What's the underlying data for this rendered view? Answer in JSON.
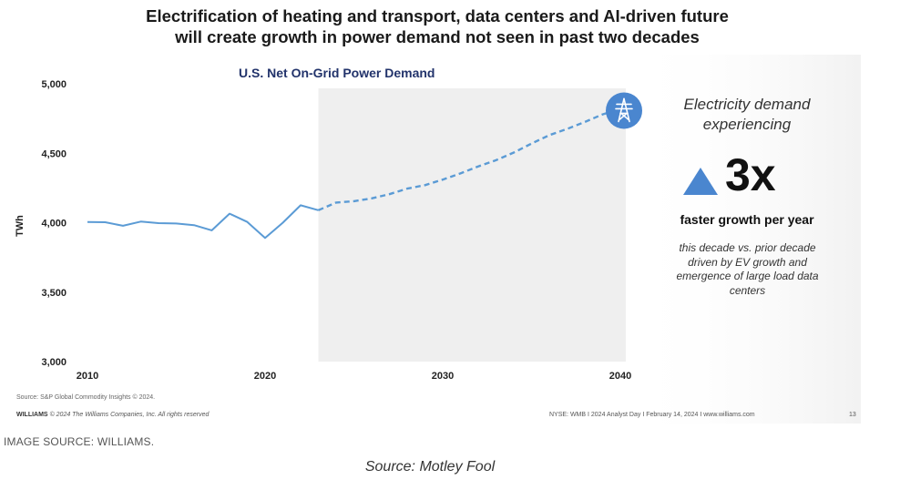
{
  "slide": {
    "title_line1": "Electrification of heating and transport, data centers and AI-driven future",
    "title_line2": "will create growth in power demand not seen in past two decades",
    "source_note": "Source: S&P Global Commodity Insights © 2024.",
    "footer_brand": "WILLIAMS",
    "footer_copyright": "© 2024 The Williams Companies, Inc. All rights reserved",
    "footer_event": "NYSE: WMB  I  2024 Analyst Day  I  February 14, 2024  I  www.williams.com",
    "page_number": "13"
  },
  "callout": {
    "headline": "Electricity demand experiencing",
    "multiplier": "3x",
    "subhead": "faster growth per year",
    "detail": "this decade vs. prior decade driven by EV growth and emergence of large load data centers",
    "icon": "transmission-tower-icon"
  },
  "page": {
    "image_source": "IMAGE SOURCE: WILLIAMS.",
    "caption": "Source: Motley Fool"
  },
  "chart_data": {
    "type": "line",
    "title": "U.S. Net On-Grid Power Demand",
    "ylabel": "TWh",
    "xlabel": "",
    "xlim": [
      2010,
      2040
    ],
    "ylim": [
      3000,
      5000
    ],
    "x_ticks": [
      2010,
      2020,
      2030,
      2040
    ],
    "y_ticks": [
      3000,
      3500,
      4000,
      4500,
      5000
    ],
    "y_tick_labels": [
      "3,000",
      "3,500",
      "4,000",
      "4,500",
      "5,000"
    ],
    "shaded_forecast_range": [
      2023,
      2040
    ],
    "grid": false,
    "series": [
      {
        "style": "solid",
        "color": "#5b9bd5",
        "x": [
          2010,
          2011,
          2012,
          2013,
          2014,
          2015,
          2016,
          2017,
          2018,
          2019,
          2020,
          2021,
          2022,
          2023
        ],
        "y": [
          4005,
          4003,
          3978,
          4008,
          3997,
          3994,
          3982,
          3945,
          4065,
          4005,
          3890,
          4000,
          4125,
          4090
        ]
      },
      {
        "style": "dashed",
        "color": "#5b9bd5",
        "x": [
          2023,
          2024,
          2025,
          2026,
          2027,
          2028,
          2029,
          2030,
          2031,
          2032,
          2033,
          2034,
          2035,
          2036,
          2037,
          2038,
          2039,
          2040
        ],
        "y": [
          4090,
          4145,
          4155,
          4175,
          4205,
          4245,
          4270,
          4310,
          4355,
          4405,
          4450,
          4505,
          4570,
          4630,
          4675,
          4725,
          4780,
          4820
        ]
      }
    ]
  }
}
